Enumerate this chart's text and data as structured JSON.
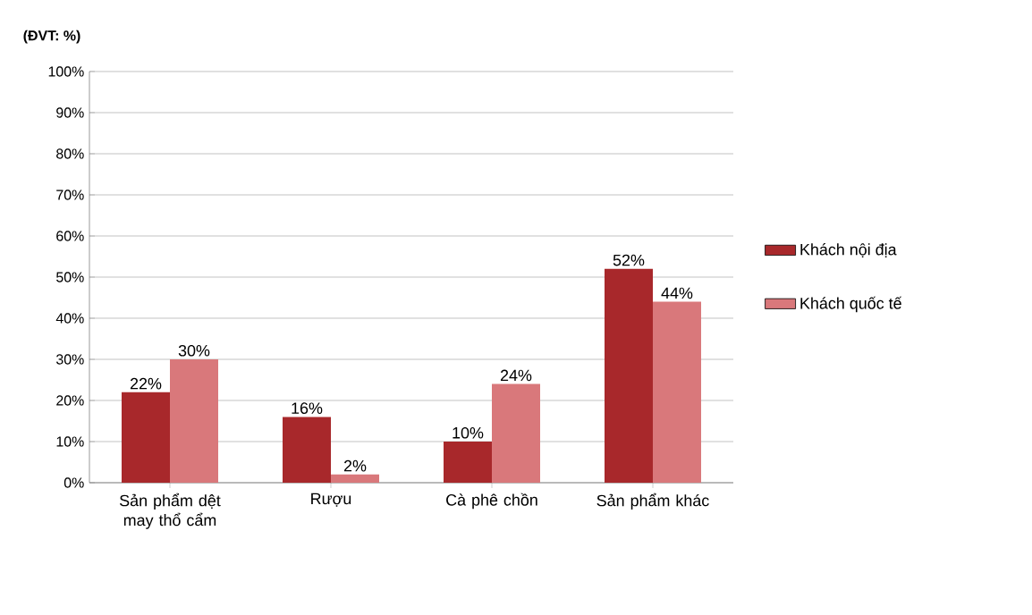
{
  "chart_data": {
    "type": "bar",
    "title": "(ĐVT: %)",
    "categories": [
      "Sản phẩm dệt may thổ cẩm",
      "Rượu",
      "Cà phê chồn",
      "Sản phẩm khác"
    ],
    "series": [
      {
        "name": "Khách nội địa",
        "color": "#a8282b",
        "values": [
          22,
          16,
          10,
          52
        ],
        "value_labels": [
          "22%",
          "16%",
          "10%",
          "52%"
        ]
      },
      {
        "name": "Khách quốc tế",
        "color": "#d9787b",
        "values": [
          30,
          2,
          24,
          44
        ],
        "value_labels": [
          "30%",
          "2%",
          "24%",
          "44%"
        ]
      }
    ],
    "ylim": [
      0,
      100
    ],
    "yticks": [
      {
        "value": 0,
        "label": "0%"
      },
      {
        "value": 10,
        "label": "10%"
      },
      {
        "value": 20,
        "label": "20%"
      },
      {
        "value": 30,
        "label": "30%"
      },
      {
        "value": 40,
        "label": "40%"
      },
      {
        "value": 50,
        "label": "50%"
      },
      {
        "value": 60,
        "label": "60%"
      },
      {
        "value": 70,
        "label": "70%"
      },
      {
        "value": 80,
        "label": "80%"
      },
      {
        "value": 90,
        "label": "90%"
      },
      {
        "value": 100,
        "label": "100%"
      }
    ],
    "grid": "y",
    "legend": "right"
  }
}
